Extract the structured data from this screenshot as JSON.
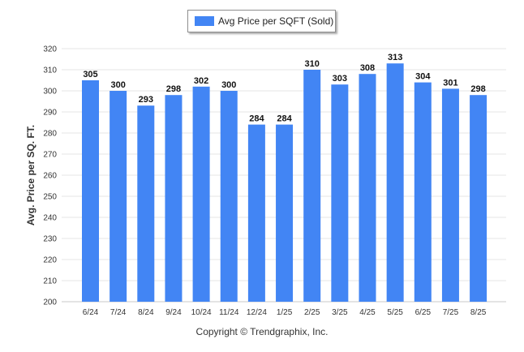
{
  "chart_data": {
    "type": "bar",
    "ylabel": "Avg. Price per SQ. FT.",
    "ylim": [
      200,
      320
    ],
    "yticks": [
      200,
      210,
      220,
      230,
      240,
      250,
      260,
      270,
      280,
      290,
      300,
      310,
      320
    ],
    "categories": [
      "6/24",
      "7/24",
      "8/24",
      "9/24",
      "10/24",
      "11/24",
      "12/24",
      "1/25",
      "2/25",
      "3/25",
      "4/25",
      "5/25",
      "6/25",
      "7/25",
      "8/25"
    ],
    "series": [
      {
        "name": "Avg Price per SQFT (Sold)",
        "color": "#4285f4",
        "values": [
          305,
          300,
          293,
          298,
          302,
          300,
          284,
          284,
          310,
          303,
          308,
          313,
          304,
          301,
          298
        ]
      }
    ],
    "data_labels": true,
    "grid": true,
    "legend_position": "top-center"
  },
  "footer": {
    "copyright": "Copyright © Trendgraphix, Inc."
  }
}
